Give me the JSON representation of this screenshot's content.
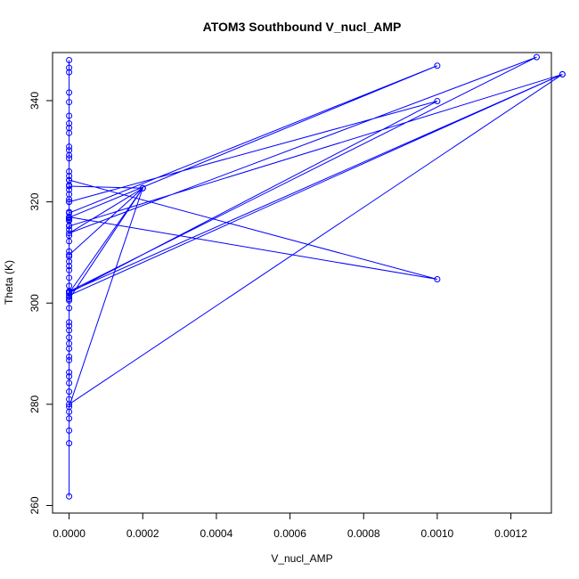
{
  "chart_data": {
    "type": "line",
    "title": "ATOM3 Southbound V_nucl_AMP",
    "xlabel": "V_nucl_AMP",
    "ylabel": "Theta (K)",
    "xlim": [
      -4.5e-05,
      0.00131
    ],
    "ylim": [
      258.5,
      349.5
    ],
    "x_ticks": [
      0.0,
      0.0002,
      0.0004,
      0.0006,
      0.0008,
      0.001,
      0.0012
    ],
    "x_tick_labels": [
      "0.0000",
      "0.0002",
      "0.0004",
      "0.0006",
      "0.0008",
      "0.0010",
      "0.0012"
    ],
    "y_ticks": [
      260,
      280,
      300,
      320,
      340
    ],
    "y_tick_labels": [
      "260",
      "280",
      "300",
      "320",
      "340"
    ],
    "grid": false,
    "series_color": "#0000ff",
    "series": [
      {
        "x": [
          0,
          0,
          0,
          0,
          0,
          0,
          0,
          0,
          0,
          0,
          0,
          0,
          0,
          0,
          0,
          0,
          0,
          0,
          0,
          0,
          0,
          0,
          0,
          0,
          0,
          0,
          0,
          0,
          0,
          0,
          0,
          0,
          0,
          0,
          0,
          0,
          0,
          0,
          0,
          0,
          0,
          0,
          0,
          0,
          0,
          0,
          0,
          0,
          0,
          0,
          0,
          0,
          0,
          0,
          0,
          0,
          0,
          0,
          0,
          0,
          0.001,
          0,
          0,
          0.00134,
          0,
          0,
          0.001,
          0,
          0,
          0.0002,
          0,
          0.00127,
          0,
          0,
          0.001,
          0,
          0,
          0.00134,
          0,
          0,
          0.0002,
          0,
          0,
          0.0002,
          0
        ],
        "y": [
          261.8,
          272.3,
          274.8,
          277.2,
          278.5,
          281.0,
          282.5,
          284.2,
          285.5,
          286.3,
          288.7,
          289.4,
          291.0,
          292.0,
          293.2,
          294.6,
          295.5,
          296.2,
          299.0,
          300.5,
          301.2,
          302.1,
          303.4,
          305.0,
          306.5,
          307.3,
          308.2,
          309.2,
          310.2,
          312.2,
          313.3,
          314.5,
          315.3,
          316.4,
          316.8,
          318.0,
          320.0,
          320.5,
          321.5,
          322.4,
          323.3,
          324.3,
          325.1,
          326.0,
          328.6,
          329.2,
          330.2,
          330.9,
          333.6,
          334.6,
          335.5,
          337.0,
          339.7,
          341.6,
          345.6,
          346.5,
          348.0,
          316.5,
          316.3,
          317.0,
          304.7,
          324.3,
          315.2,
          345.2,
          302.2,
          317.8,
          346.9,
          316.9,
          309.5,
          322.7,
          313.8,
          348.6,
          302.3,
          320.0,
          339.9,
          302.0,
          280.0,
          345.2,
          301.5,
          279.5,
          322.7,
          300.8,
          323.1,
          322.7,
          302.0
        ]
      }
    ]
  }
}
